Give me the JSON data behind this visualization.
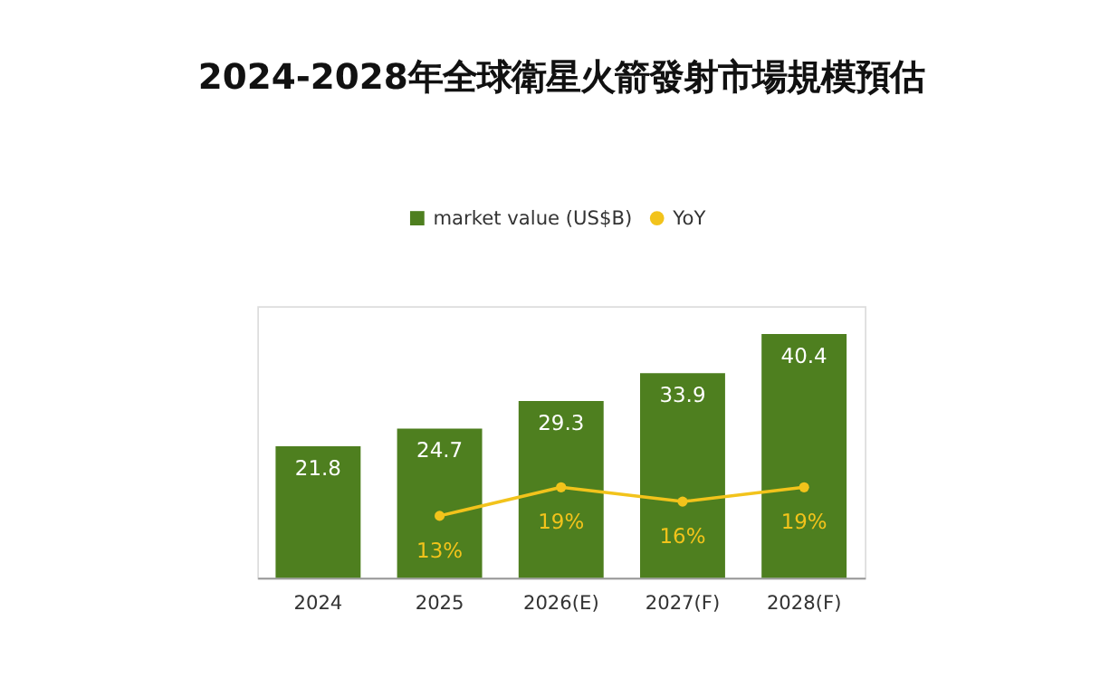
{
  "chart_data": {
    "type": "bar",
    "title": "2024-2028年全球衛星火箭發射市場規模預估",
    "categories": [
      "2024",
      "2025",
      "2026(E)",
      "2027(F)",
      "2028(F)"
    ],
    "series": [
      {
        "name": "market value (US$B)",
        "color": "#4e7f1f",
        "values": [
          21.8,
          24.7,
          29.3,
          33.9,
          40.4
        ]
      },
      {
        "name": "YoY",
        "type": "line",
        "axis": "y2",
        "color": "#f2c31b",
        "values": [
          null,
          13,
          19,
          16,
          19
        ],
        "value_labels": [
          null,
          "13%",
          "19%",
          "16%",
          "19%"
        ]
      }
    ],
    "ylim": [
      0,
      45
    ],
    "y2lim": [
      0,
      57
    ],
    "tick_labels": "x",
    "data_labels": true,
    "grid": false,
    "legend": "top",
    "marker": "circle"
  }
}
